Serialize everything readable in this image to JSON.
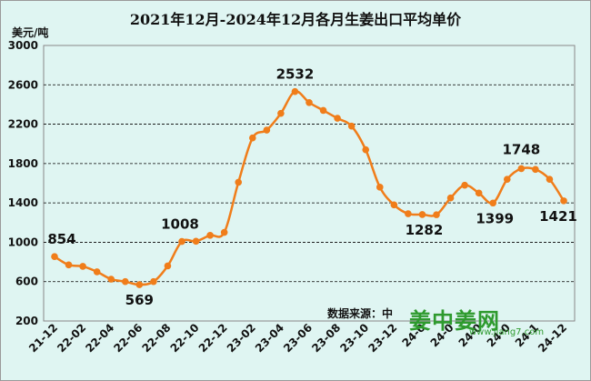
{
  "title": "2021年12月-2024年12月各月生姜出口平均单价",
  "y_unit": "美元/吨",
  "source_text": "数据来源：中",
  "watermark": {
    "brand": "姜中姜网",
    "url": "www.jiang7.com"
  },
  "colors": {
    "line": "#f07d1a",
    "grid": "#000000",
    "background": "#dff5f2"
  },
  "chart_data": {
    "type": "line",
    "title": "2021年12月-2024年12月各月生姜出口平均单价",
    "ylabel": "美元/吨",
    "ylim": [
      200,
      3000
    ],
    "yticks": [
      200,
      600,
      1000,
      1400,
      1800,
      2200,
      2600,
      3000
    ],
    "grid": true,
    "x": [
      "21-12",
      "22-01",
      "22-02",
      "22-03",
      "22-04",
      "22-05",
      "22-06",
      "22-07",
      "22-08",
      "22-09",
      "22-10",
      "22-11",
      "22-12",
      "23-01",
      "23-02",
      "23-03",
      "23-04",
      "23-05",
      "23-06",
      "23-07",
      "23-08",
      "23-09",
      "23-10",
      "23-11",
      "23-12",
      "24-01",
      "24-02",
      "24-03",
      "24-04",
      "24-05",
      "24-06",
      "24-07",
      "24-08",
      "24-09",
      "24-10",
      "24-11",
      "24-12"
    ],
    "xtick_labels": [
      "21-12",
      "22-02",
      "22-04",
      "22-06",
      "22-08",
      "22-10",
      "22-12",
      "23-02",
      "23-04",
      "23-06",
      "23-08",
      "23-10",
      "23-12",
      "24-02",
      "24-04",
      "24-06",
      "24-08",
      "24-10",
      "24-12"
    ],
    "xtick_labels_shown": [
      "21-12",
      "22-02",
      "22-04",
      "22-06",
      "22-08",
      "22-10",
      "22-12",
      "23-02",
      "23-04",
      "23-06",
      "23-08",
      "23-10",
      "23-12",
      "24-0",
      "24-0",
      "24-0",
      "24-0",
      "24-1",
      "24-12"
    ],
    "values": [
      854,
      770,
      755,
      700,
      625,
      600,
      569,
      600,
      760,
      1008,
      1010,
      1070,
      1100,
      1610,
      2060,
      2140,
      2310,
      2532,
      2420,
      2340,
      2260,
      2180,
      1940,
      1560,
      1380,
      1290,
      1282,
      1280,
      1450,
      1580,
      1500,
      1399,
      1640,
      1748,
      1740,
      1640,
      1421
    ],
    "data_labels": [
      {
        "index": 0,
        "text": "854"
      },
      {
        "index": 6,
        "text": "569"
      },
      {
        "index": 9,
        "text": "1008"
      },
      {
        "index": 17,
        "text": "2532"
      },
      {
        "index": 26,
        "text": "1282"
      },
      {
        "index": 31,
        "text": "1399"
      },
      {
        "index": 33,
        "text": "1748"
      },
      {
        "index": 36,
        "text": "1421"
      }
    ]
  }
}
